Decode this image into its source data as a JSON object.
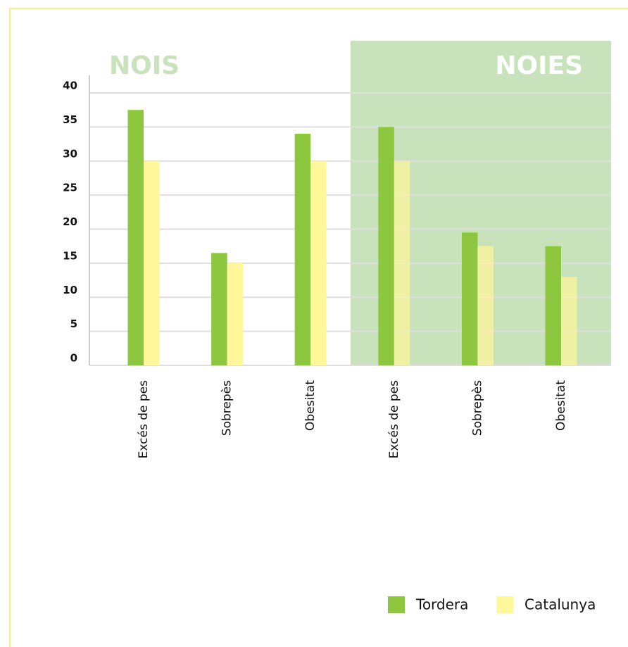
{
  "chart_data": {
    "type": "bar",
    "annotations": [
      "NOIS",
      "NOIES"
    ],
    "categories": [
      "Excés de pes",
      "Sobrepès",
      "Obesitat",
      "Excés de pes",
      "Sobrepès",
      "Obesitat"
    ],
    "series": [
      {
        "name": "Tordera",
        "color": "#8dc63f",
        "values": [
          37.5,
          16.5,
          34,
          35,
          19.5,
          17.5
        ]
      },
      {
        "name": "Catalunya",
        "color": "#fff799",
        "values": [
          30,
          15,
          30,
          30,
          17.5,
          13
        ]
      }
    ],
    "ylim": [
      0,
      40
    ],
    "yticks": [
      0,
      5,
      10,
      15,
      20,
      25,
      30,
      35,
      40
    ],
    "grid": true,
    "legend": "bottom-right"
  }
}
